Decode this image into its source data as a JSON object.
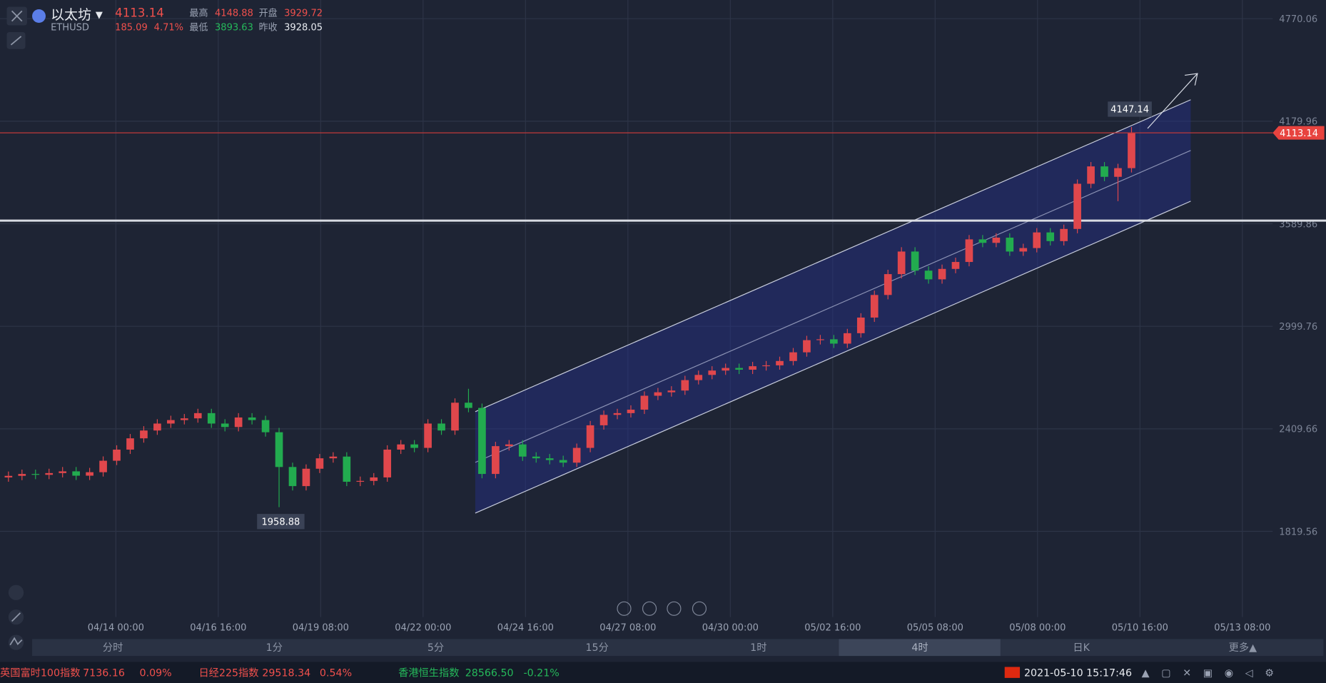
{
  "header": {
    "name": "以太坊",
    "symbol": "ETHUSD",
    "price": "4113.14",
    "change": "185.09",
    "change_pct": "4.71%",
    "stats": [
      {
        "label": "最高",
        "value": "4148.88"
      },
      {
        "label": "开盘",
        "value": "3929.72"
      },
      {
        "label": "最低",
        "value": "3893.63"
      },
      {
        "label": "昨收",
        "value": "3928.05"
      }
    ]
  },
  "chart_data": {
    "type": "candlestick",
    "up_color": "#e0474c",
    "down_color": "#22ab4f",
    "ylim": [
      1326.3,
      4877.6
    ],
    "yticks": [
      1819.56,
      2409.66,
      2999.76,
      3589.86,
      4179.96,
      4770.06
    ],
    "grid": true,
    "hline": 3608,
    "xtick_labels": [
      "04/14 00:00",
      "04/16 16:00",
      "04/19 08:00",
      "04/22 00:00",
      "04/24 16:00",
      "04/27 08:00",
      "04/30 00:00",
      "05/02 16:00",
      "05/05 08:00",
      "05/08 00:00",
      "05/10 16:00",
      "05/13 08:00"
    ],
    "open": [
      2130,
      2139,
      2150,
      2145,
      2155,
      2165,
      2140,
      2160,
      2226,
      2290,
      2355,
      2400,
      2440,
      2460,
      2470,
      2500,
      2440,
      2420,
      2475,
      2460,
      2390,
      2190,
      2080,
      2180,
      2240,
      2250,
      2105,
      2110,
      2130,
      2290,
      2320,
      2300,
      2440,
      2400,
      2560,
      2530,
      2150,
      2310,
      2320,
      2250,
      2240,
      2230,
      2215,
      2300,
      2430,
      2490,
      2500,
      2520,
      2600,
      2620,
      2630,
      2690,
      2720,
      2745,
      2760,
      2750,
      2770,
      2775,
      2800,
      2850,
      2920,
      2925,
      2900,
      2960,
      3050,
      3180,
      3300,
      3430,
      3320,
      3270,
      3330,
      3370,
      3500,
      3480,
      3510,
      3430,
      3450,
      3540,
      3490,
      3560,
      3820,
      3920,
      3860,
      3910
    ],
    "high": [
      2164,
      2175,
      2175,
      2180,
      2190,
      2190,
      2185,
      2251,
      2315,
      2380,
      2425,
      2465,
      2485,
      2495,
      2525,
      2525,
      2465,
      2500,
      2500,
      2485,
      2415,
      2215,
      2205,
      2265,
      2275,
      2275,
      2135,
      2155,
      2315,
      2345,
      2345,
      2465,
      2465,
      2585,
      2640,
      2555,
      2335,
      2345,
      2345,
      2275,
      2265,
      2255,
      2325,
      2455,
      2515,
      2525,
      2545,
      2625,
      2645,
      2655,
      2715,
      2745,
      2770,
      2785,
      2785,
      2795,
      2800,
      2825,
      2875,
      2945,
      2950,
      2950,
      2985,
      3075,
      3205,
      3325,
      3455,
      3455,
      3345,
      3355,
      3395,
      3525,
      3525,
      3535,
      3535,
      3475,
      3565,
      3565,
      3585,
      3845,
      3945,
      3945,
      3935,
      4147.14
    ],
    "low": [
      2105,
      2114,
      2120,
      2120,
      2130,
      2115,
      2115,
      2135,
      2201,
      2265,
      2330,
      2375,
      2415,
      2435,
      2445,
      2415,
      2395,
      2395,
      2435,
      2365,
      1958.88,
      2055,
      2055,
      2155,
      2215,
      2080,
      2080,
      2085,
      2105,
      2265,
      2275,
      2275,
      2375,
      2375,
      2505,
      2125,
      2125,
      2285,
      2225,
      2215,
      2205,
      2190,
      2190,
      2275,
      2405,
      2465,
      2475,
      2495,
      2575,
      2595,
      2605,
      2665,
      2695,
      2720,
      2725,
      2725,
      2745,
      2750,
      2775,
      2825,
      2895,
      2875,
      2875,
      2935,
      3025,
      3155,
      3275,
      3295,
      3245,
      3245,
      3305,
      3345,
      3455,
      3455,
      3405,
      3405,
      3425,
      3465,
      3465,
      3535,
      3795,
      3835,
      3720,
      3885
    ],
    "close": [
      2139,
      2150,
      2145,
      2155,
      2165,
      2140,
      2160,
      2226,
      2290,
      2355,
      2400,
      2440,
      2460,
      2470,
      2500,
      2440,
      2420,
      2475,
      2460,
      2390,
      2190,
      2080,
      2180,
      2240,
      2250,
      2105,
      2110,
      2130,
      2290,
      2320,
      2300,
      2440,
      2400,
      2560,
      2530,
      2150,
      2310,
      2320,
      2250,
      2240,
      2230,
      2215,
      2300,
      2430,
      2490,
      2500,
      2520,
      2600,
      2620,
      2630,
      2690,
      2720,
      2745,
      2760,
      2750,
      2770,
      2775,
      2800,
      2850,
      2920,
      2925,
      2900,
      2960,
      3050,
      3180,
      3300,
      3430,
      3320,
      3270,
      3330,
      3370,
      3500,
      3480,
      3510,
      3430,
      3450,
      3540,
      3490,
      3560,
      3820,
      3920,
      3860,
      3910,
      4113.14
    ]
  },
  "periods": [
    "分时",
    "1分",
    "5分",
    "15分",
    "1时",
    "4时",
    "日K",
    "更多▲"
  ],
  "ticker": [
    {
      "name": "英国富时100指数",
      "value": "7136.16",
      "change": "0.09%"
    },
    {
      "name": "日经225指数",
      "value": "29518.34",
      "change": "0.54%"
    },
    {
      "name": "香港恒生指数",
      "value": "28566.50",
      "change": "-0.21%"
    }
  ],
  "datetime": "2021-05-10 15:17:46"
}
